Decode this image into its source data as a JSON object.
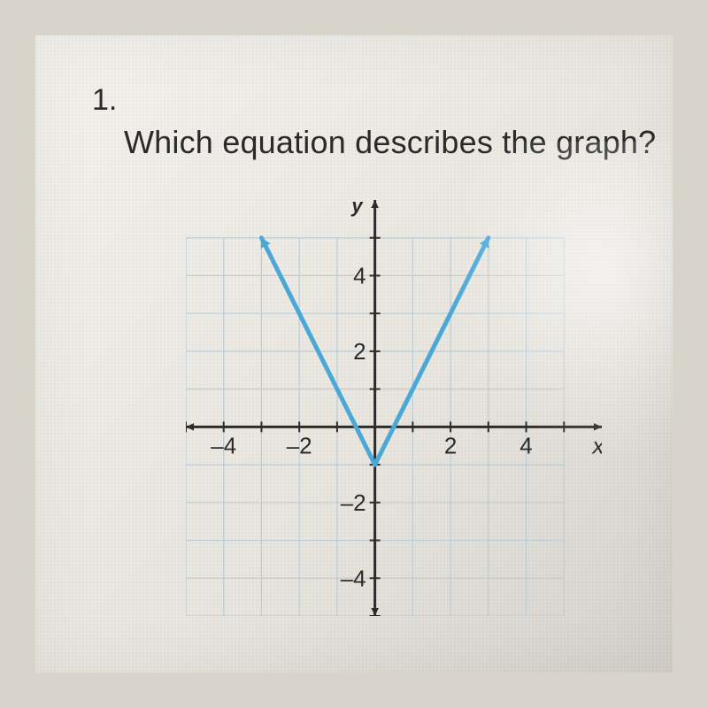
{
  "question": {
    "number": "1.",
    "text": "Which equation describes the graph?"
  },
  "chart": {
    "type": "line",
    "xlim": [
      -5,
      6
    ],
    "ylim": [
      -5,
      6
    ],
    "grid_xlim": [
      -5,
      5
    ],
    "grid_ylim": [
      -5,
      5
    ],
    "xticks": [
      -4,
      -2,
      2,
      4
    ],
    "yticks": [
      -4,
      -2,
      2,
      4
    ],
    "x_right_label": "x",
    "y_top_label": "y",
    "series": [
      {
        "points": [
          [
            0,
            -1
          ],
          [
            -3,
            5
          ]
        ]
      },
      {
        "points": [
          [
            0,
            -1
          ],
          [
            3,
            5
          ]
        ]
      }
    ],
    "line_color": "#4aa8d8",
    "line_width": 5,
    "axis_color": "#2c2c2c",
    "axis_width": 3,
    "grid_color": "#b9cdd8",
    "grid_width": 1.2,
    "tick_fontsize": 26,
    "label_fontsize": 22,
    "background_color": "transparent",
    "arrowheads": true
  }
}
